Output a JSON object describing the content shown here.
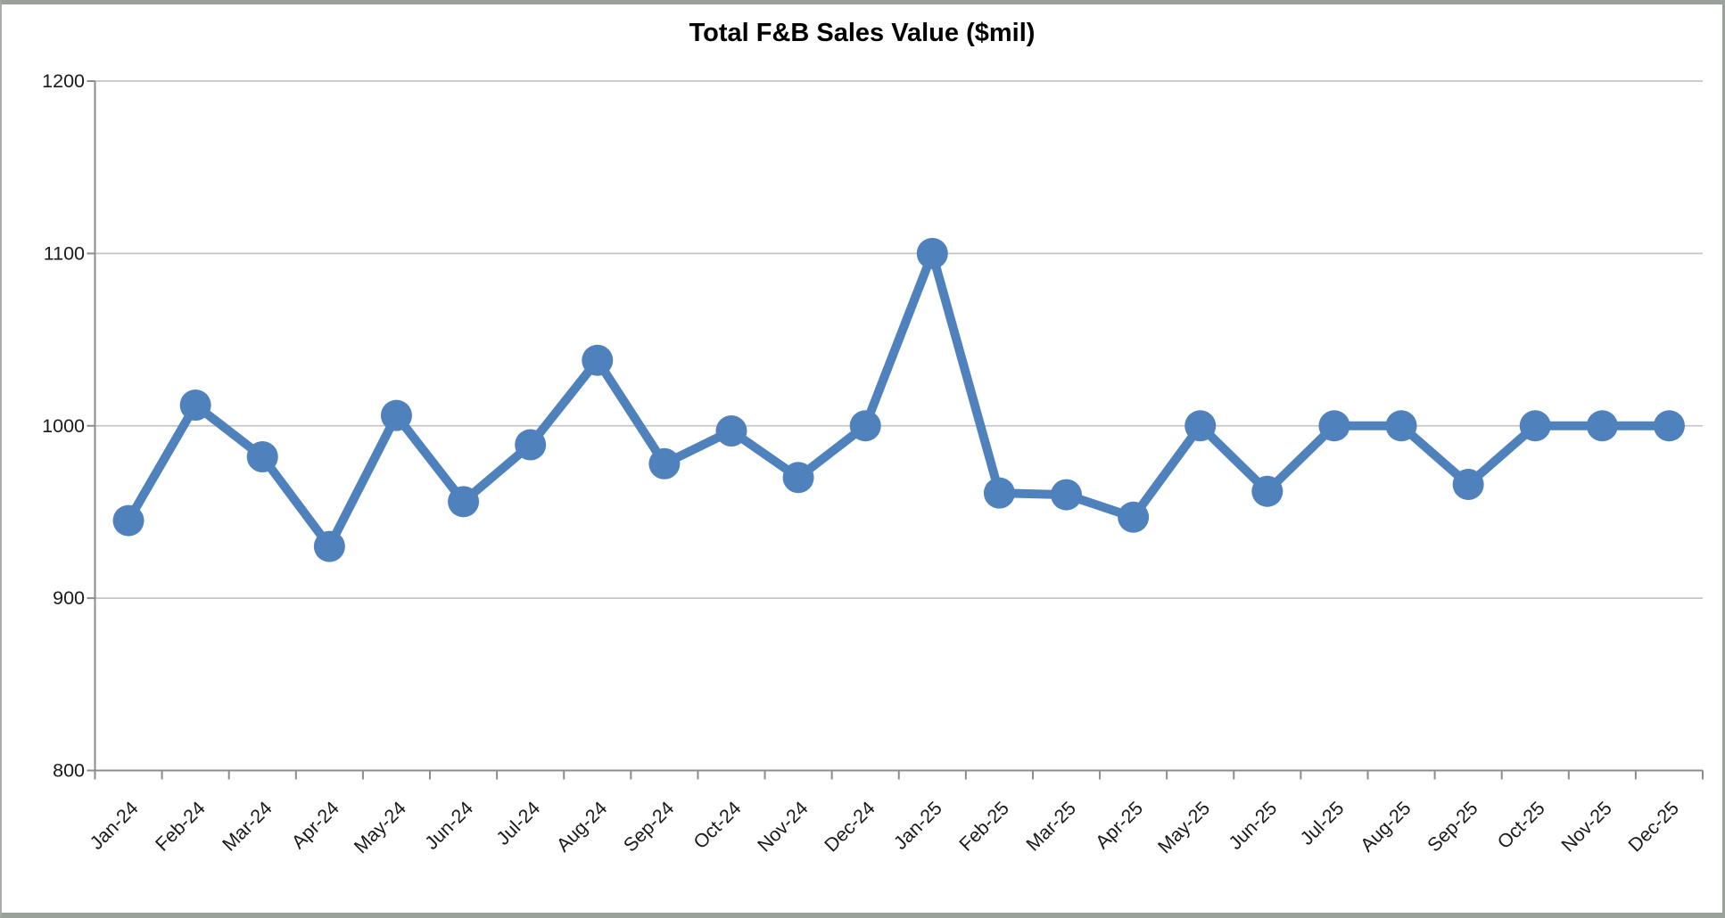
{
  "frame": {
    "border_color": "#9aa09a",
    "background": "#ffffff"
  },
  "chart_data": {
    "type": "line",
    "title": "Total F&B Sales Value ($mil)",
    "categories": [
      "Jan-24",
      "Feb-24",
      "Mar-24",
      "Apr-24",
      "May-24",
      "Jun-24",
      "Jul-24",
      "Aug-24",
      "Sep-24",
      "Oct-24",
      "Nov-24",
      "Dec-24",
      "Jan-25",
      "Feb-25",
      "Mar-25",
      "Apr-25",
      "May-25",
      "Jun-25",
      "Jul-25",
      "Aug-25",
      "Sep-25",
      "Oct-25",
      "Nov-25",
      "Dec-25"
    ],
    "values": [
      945,
      1012,
      982,
      930,
      1006,
      956,
      989,
      1038,
      978,
      997,
      970,
      1000,
      1100,
      961,
      960,
      947,
      1000,
      962,
      1000,
      1000,
      966,
      1000,
      1000,
      1000
    ],
    "xlabel": "",
    "ylabel": "",
    "ylim": [
      800,
      1200
    ],
    "yticks": [
      800,
      900,
      1000,
      1100,
      1200
    ],
    "grid": "horizontal",
    "legend": "none",
    "marker": "circle",
    "x_label_rotation_deg": 45,
    "colors": {
      "series": "#4f81bd",
      "gridline": "#c6c6c6",
      "axis": "#8c8c8c",
      "tick_label": "#1a1a1a",
      "title": "#000000"
    }
  }
}
